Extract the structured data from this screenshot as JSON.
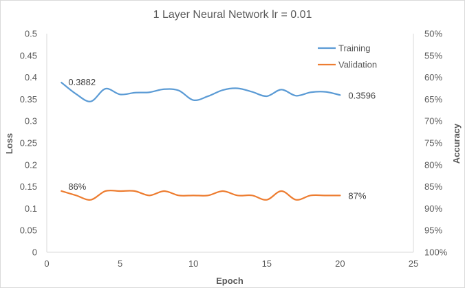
{
  "chart_data": {
    "type": "line",
    "title": "1 Layer Neural Network  lr = 0.01",
    "xlabel": "Epoch",
    "ylabel": "Loss",
    "y2label": "Accuracy",
    "xlim": [
      0,
      25
    ],
    "ylim": [
      0,
      0.5
    ],
    "y2lim": [
      1.0,
      0.5
    ],
    "y2_inverted": true,
    "x_ticks": [
      0,
      5,
      10,
      15,
      20,
      25
    ],
    "x_tick_labels": [
      "0",
      "5",
      "10",
      "15",
      "20",
      "25"
    ],
    "y_ticks": [
      0,
      0.05,
      0.1,
      0.15,
      0.2,
      0.25,
      0.3,
      0.35,
      0.4,
      0.45,
      0.5
    ],
    "y_tick_labels": [
      "0",
      "0.05",
      "0.1",
      "0.15",
      "0.2",
      "0.25",
      "0.3",
      "0.35",
      "0.4",
      "0.45",
      "0.5"
    ],
    "y2_ticks": [
      0.5,
      0.55,
      0.6,
      0.65,
      0.7,
      0.75,
      0.8,
      0.85,
      0.9,
      0.95,
      1.0
    ],
    "y2_tick_labels": [
      "50%",
      "55%",
      "60%",
      "65%",
      "70%",
      "75%",
      "80%",
      "85%",
      "90%",
      "95%",
      "100%"
    ],
    "grid": false,
    "legend_position": "top-right",
    "x": [
      1,
      2,
      3,
      4,
      5,
      6,
      7,
      8,
      9,
      10,
      11,
      12,
      13,
      14,
      15,
      16,
      17,
      18,
      19,
      20
    ],
    "series": [
      {
        "name": "Training",
        "axis": "left",
        "color": "#5B9BD5",
        "values": [
          0.3882,
          0.362,
          0.345,
          0.374,
          0.361,
          0.365,
          0.366,
          0.373,
          0.37,
          0.348,
          0.357,
          0.371,
          0.375,
          0.367,
          0.357,
          0.372,
          0.358,
          0.366,
          0.367,
          0.3596
        ]
      },
      {
        "name": "Validation",
        "axis": "right",
        "color": "#ED7D31",
        "values": [
          0.86,
          0.87,
          0.88,
          0.86,
          0.86,
          0.86,
          0.87,
          0.86,
          0.87,
          0.87,
          0.87,
          0.86,
          0.87,
          0.87,
          0.88,
          0.86,
          0.88,
          0.87,
          0.87,
          0.87
        ]
      }
    ],
    "annotations": [
      {
        "series": 0,
        "index": 0,
        "text": "0.3882"
      },
      {
        "series": 0,
        "index": 19,
        "text": "0.3596"
      },
      {
        "series": 1,
        "index": 0,
        "text": "86%"
      },
      {
        "series": 1,
        "index": 19,
        "text": "87%"
      }
    ]
  }
}
